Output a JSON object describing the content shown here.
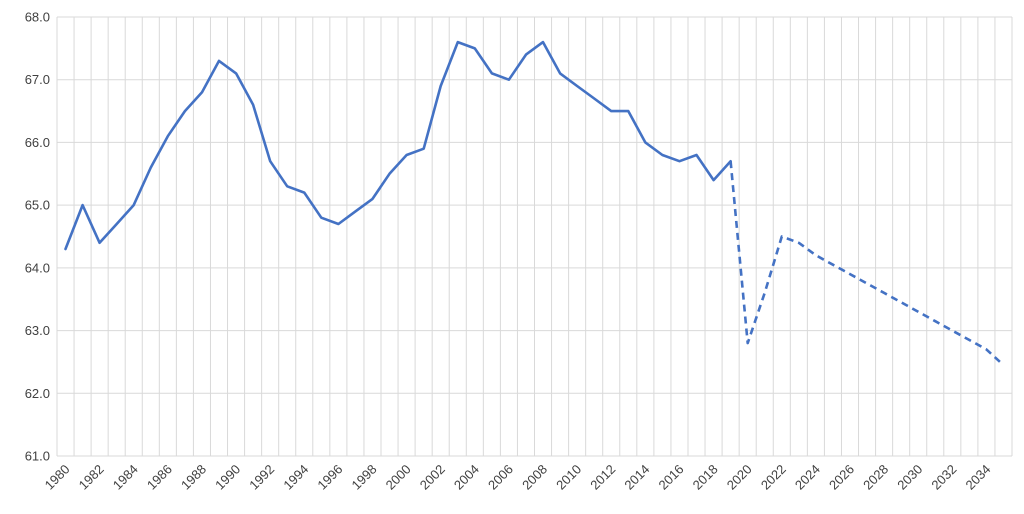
{
  "chart_data": {
    "type": "line",
    "title": "",
    "xlabel": "",
    "ylabel": "",
    "xlim": [
      1980,
      2035
    ],
    "ylim": [
      61.0,
      68.0
    ],
    "y_ticks": [
      "61.0",
      "62.0",
      "63.0",
      "64.0",
      "65.0",
      "66.0",
      "67.0",
      "68.0"
    ],
    "x_tick_labels": [
      "1980",
      "1982",
      "1984",
      "1986",
      "1988",
      "1990",
      "1992",
      "1994",
      "1996",
      "1998",
      "2000",
      "2002",
      "2004",
      "2006",
      "2008",
      "2010",
      "2012",
      "2014",
      "2016",
      "2018",
      "2020",
      "2022",
      "2024",
      "2026",
      "2028",
      "2030",
      "2032",
      "2034"
    ],
    "grid": true,
    "legend": "none",
    "line_color": "#4472c4",
    "series": [
      {
        "style": "solid",
        "x": [
          1980,
          1981,
          1982,
          1983,
          1984,
          1985,
          1986,
          1987,
          1988,
          1989,
          1990,
          1991,
          1992,
          1993,
          1994,
          1995,
          1996,
          1997,
          1998,
          1999,
          2000,
          2001,
          2002,
          2003,
          2004,
          2005,
          2006,
          2007,
          2008,
          2009,
          2010,
          2011,
          2012,
          2013,
          2014,
          2015,
          2016,
          2017,
          2018,
          2019
        ],
        "values": [
          64.3,
          65.0,
          64.4,
          64.7,
          65.0,
          65.6,
          66.1,
          66.5,
          66.8,
          67.3,
          67.1,
          66.6,
          65.7,
          65.3,
          65.2,
          64.8,
          64.7,
          64.9,
          65.1,
          65.5,
          65.8,
          65.9,
          66.9,
          67.6,
          67.5,
          67.1,
          67.0,
          67.4,
          67.6,
          67.1,
          66.9,
          66.7,
          66.5,
          66.5,
          66.0,
          65.8,
          65.7,
          65.8,
          65.4,
          65.7
        ]
      },
      {
        "style": "dashed",
        "x": [
          2019,
          2020,
          2021,
          2022,
          2023,
          2024,
          2025,
          2026,
          2027,
          2028,
          2029,
          2030,
          2031,
          2032,
          2033,
          2034,
          2035
        ],
        "values": [
          65.7,
          62.8,
          63.6,
          64.5,
          64.4,
          64.2,
          64.05,
          63.9,
          63.75,
          63.6,
          63.45,
          63.3,
          63.15,
          63.0,
          62.85,
          62.7,
          62.45
        ]
      }
    ]
  }
}
